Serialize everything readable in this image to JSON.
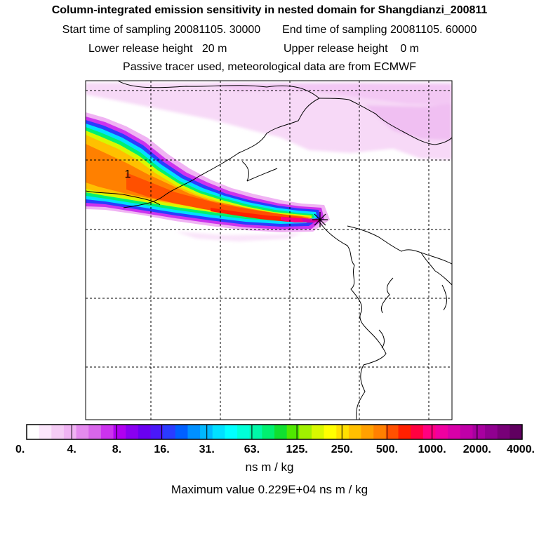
{
  "header": {
    "title": "Column-integrated emission sensitivity in nested domain for Shangdianzi_200811",
    "start_label": "Start time of sampling 20081105. 30000",
    "end_label": "End time of sampling 20081105. 60000",
    "lower_label": "Lower release height   20 m",
    "upper_label": "Upper release height    0 m",
    "note": "Passive tracer used, meteorological data are from ECMWF"
  },
  "chart_data": {
    "type": "heatmap",
    "title": "Column-integrated emission sensitivity in nested domain for Shangdianzi_200811",
    "colorbar": {
      "ticks": [
        "0.",
        "4.",
        "8.",
        "16.",
        "31.",
        "63.",
        "125.",
        "250.",
        "500.",
        "1000.",
        "2000.",
        "4000."
      ],
      "unit": "ns m / kg",
      "colors": [
        "#ffffff",
        "#fbe6fb",
        "#f5ccf5",
        "#f0b3f3",
        "#e48aee",
        "#d866ea",
        "#cc33ee",
        "#b000f0",
        "#8a00f0",
        "#6a00f0",
        "#4a18f8",
        "#2a3cff",
        "#0060ff",
        "#0090ff",
        "#00b8ff",
        "#00e0ff",
        "#00ffff",
        "#00ffd8",
        "#00f8a8",
        "#00f070",
        "#10e030",
        "#50e800",
        "#a0f000",
        "#d8f800",
        "#ffff00",
        "#ffe000",
        "#ffc000",
        "#ffa000",
        "#ff8000",
        "#ff5000",
        "#ff2000",
        "#ff0040",
        "#ff0080",
        "#f000a0",
        "#d800a8",
        "#c000a8",
        "#a800a0",
        "#900090",
        "#780078",
        "#600060"
      ]
    },
    "contour_label": "1",
    "receptor_marker": "Shangdianzi",
    "max_value": "0.229E+04",
    "max_label": "Maximum value  0.229E+04 ns m / kg"
  }
}
